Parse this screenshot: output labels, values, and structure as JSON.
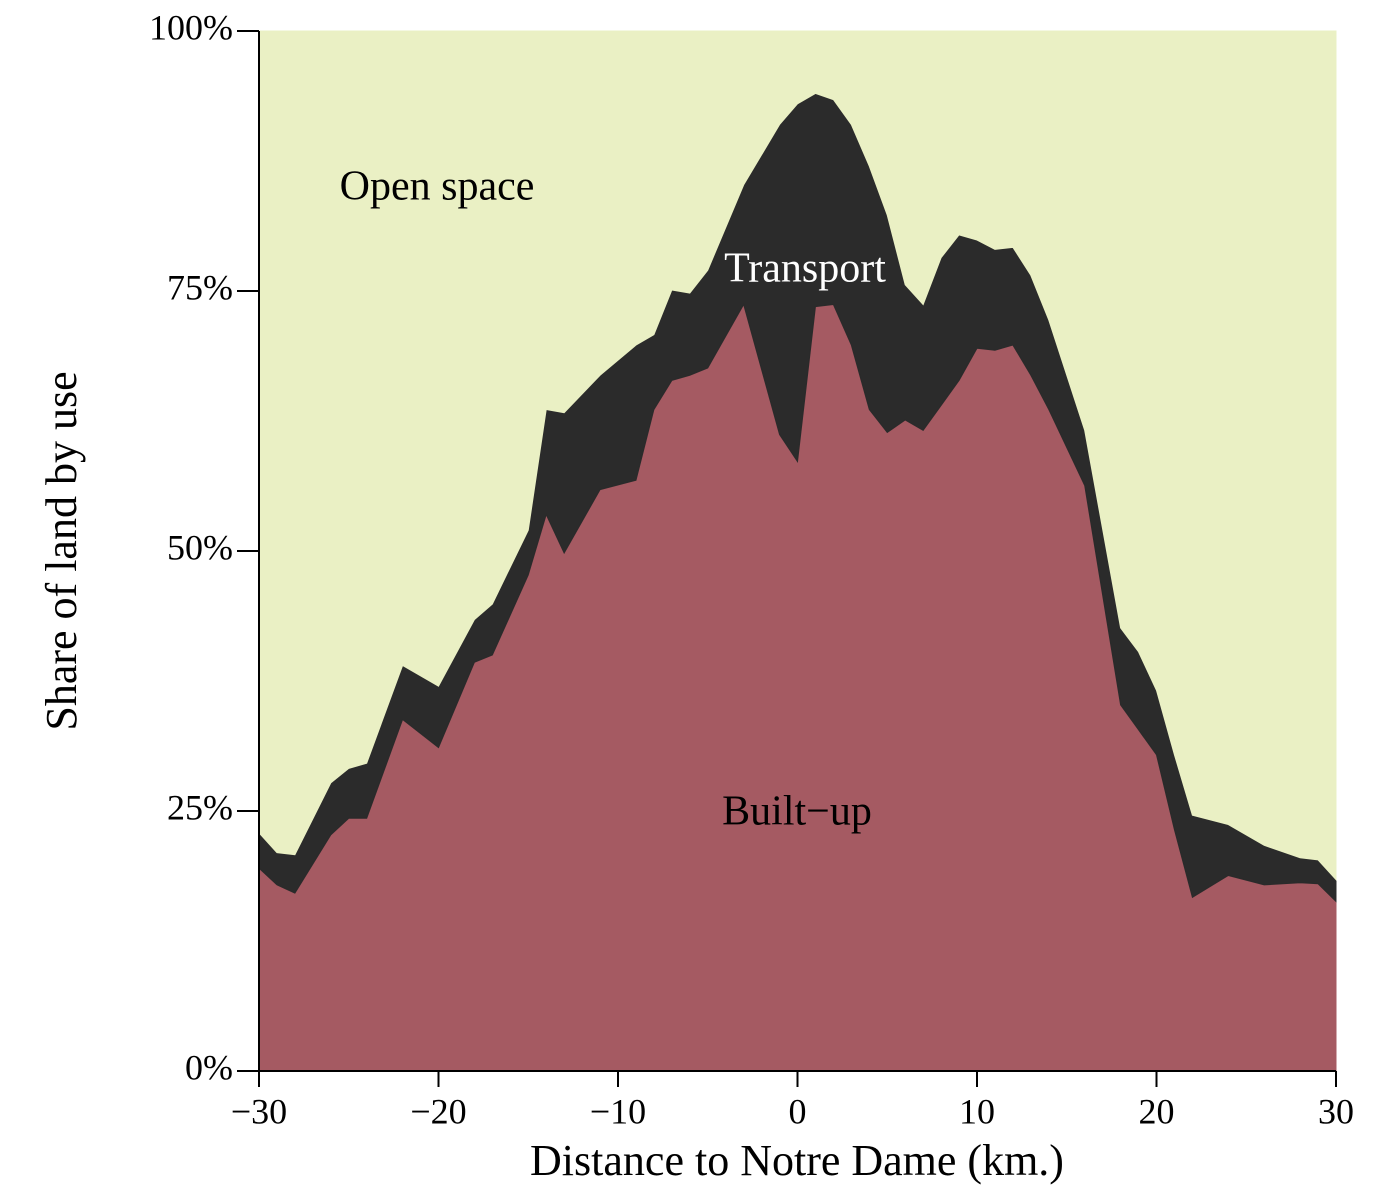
{
  "chart_data": {
    "type": "stacked_area",
    "x_label": "Distance to Notre Dame (km.)",
    "y_label": "Share of land by use",
    "x": [
      -30,
      -29,
      -28,
      -26,
      -25,
      -24,
      -22,
      -20,
      -18,
      -17,
      -15,
      -14,
      -13,
      -11,
      -9,
      -8,
      -7,
      -6,
      -5,
      -3,
      -1,
      0,
      1,
      2,
      3,
      4,
      5,
      6,
      7,
      8,
      9,
      10,
      11,
      12,
      13,
      14,
      16,
      18,
      19,
      20,
      21,
      22,
      24,
      26,
      28,
      29,
      30
    ],
    "series": [
      {
        "name": "Built−up",
        "color": "#a55a62",
        "label_color": "#000000",
        "values": [
          19.5,
          17.9,
          17.1,
          22.7,
          24.3,
          24.3,
          33.8,
          31.1,
          39.3,
          40,
          47.7,
          53.5,
          49.8,
          55.9,
          56.8,
          63.6,
          66.4,
          66.9,
          67.6,
          73.7,
          61.2,
          58.6,
          73.5,
          73.7,
          69.8,
          63.6,
          61.4,
          62.6,
          61.6,
          64,
          66.4,
          69.5,
          69.3,
          69.8,
          66.9,
          63.6,
          56.3,
          35.2,
          32.8,
          30.4,
          23.2,
          16.7,
          18.8,
          17.9,
          18.1,
          18,
          16.3
        ]
      },
      {
        "name": "Transport",
        "color": "#2b2b2b",
        "label_color": "#ffffff",
        "values": [
          3.4,
          3.1,
          3.7,
          5,
          4.8,
          5.3,
          5.2,
          5.9,
          4.1,
          4.9,
          4.3,
          10.1,
          13.5,
          11,
          13,
          7.2,
          8.7,
          7.9,
          9.4,
          11.5,
          29.8,
          34.4,
          20.5,
          19.7,
          21.2,
          23.4,
          20.9,
          13,
          12.1,
          14.2,
          14,
          10.4,
          9.7,
          9.4,
          9.6,
          8.6,
          5.3,
          7.4,
          7.5,
          6.2,
          7.2,
          7.9,
          4.9,
          3.8,
          2.4,
          2.3,
          2.1
        ]
      },
      {
        "name": "Open space",
        "color": "#eaf0c4",
        "label_color": "#000000",
        "values": [
          77.1,
          79,
          79.2,
          72.3,
          70.9,
          70.4,
          61,
          63,
          56.6,
          55.1,
          48,
          36.4,
          36.7,
          33.1,
          30.2,
          29.2,
          24.9,
          25.2,
          23,
          14.8,
          9,
          7,
          6,
          6.6,
          9,
          13,
          17.7,
          24.4,
          26.3,
          21.8,
          19.6,
          20.1,
          21,
          20.8,
          23.5,
          27.8,
          38.4,
          57.4,
          59.7,
          63.4,
          69.6,
          75.4,
          76.3,
          78.3,
          79.5,
          79.7,
          81.6
        ]
      }
    ],
    "xlim": [
      -30,
      30
    ],
    "xticks": [
      {
        "value": -30,
        "label": "−30"
      },
      {
        "value": -20,
        "label": "−20"
      },
      {
        "value": -10,
        "label": "−10"
      },
      0,
      10,
      20,
      30
    ],
    "ylim": [
      0,
      100
    ],
    "yticks": [
      {
        "value": 0,
        "label": "0%"
      },
      {
        "value": 25,
        "label": "25%"
      },
      {
        "value": 50,
        "label": "50%"
      },
      {
        "value": 75,
        "label": "75%"
      },
      {
        "value": 100,
        "label": "100%"
      }
    ],
    "grid": false
  }
}
